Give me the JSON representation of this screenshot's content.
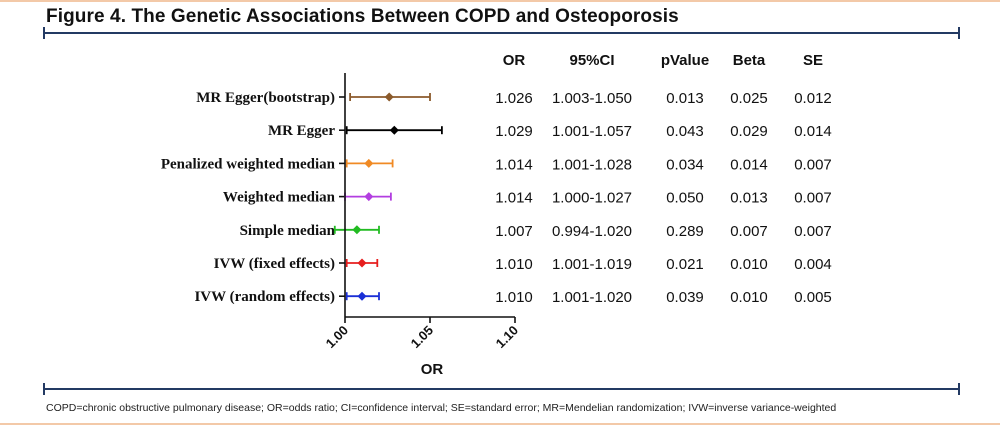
{
  "header": {
    "title": "Figure 4. The Genetic Associations Between COPD and Osteoporosis"
  },
  "footnote": "COPD=chronic obstructive pulmonary disease; OR=odds ratio; CI=confidence interval; SE=standard error;  MR=Mendelian randomization; IVW=inverse variance-weighted",
  "table": {
    "columns": [
      "OR",
      "95%CI",
      "pValue",
      "Beta",
      "SE"
    ]
  },
  "colors": {
    "rule": "#233a63",
    "frame": "#f3c9a8"
  },
  "chart_data": {
    "type": "forest",
    "xlabel": "OR",
    "xlim": [
      1.0,
      1.1
    ],
    "xticks": [
      "1.00",
      "1.05",
      "1.10"
    ],
    "xtick_values": [
      1.0,
      1.05,
      1.1
    ],
    "rows": [
      {
        "label": "MR Egger(bootstrap)",
        "or": 1.026,
        "lo": 1.003,
        "hi": 1.05,
        "or_text": "1.026",
        "ci_text": "1.003-1.050",
        "p": "0.013",
        "beta": "0.025",
        "se": "0.012",
        "color": "#8b5a2b"
      },
      {
        "label": "MR Egger",
        "or": 1.029,
        "lo": 1.001,
        "hi": 1.057,
        "or_text": "1.029",
        "ci_text": "1.001-1.057",
        "p": "0.043",
        "beta": "0.029",
        "se": "0.014",
        "color": "#000000"
      },
      {
        "label": "Penalized weighted median",
        "or": 1.014,
        "lo": 1.001,
        "hi": 1.028,
        "or_text": "1.014",
        "ci_text": "1.001-1.028",
        "p": "0.034",
        "beta": "0.014",
        "se": "0.007",
        "color": "#f08a24"
      },
      {
        "label": "Weighted median",
        "or": 1.014,
        "lo": 1.0,
        "hi": 1.027,
        "or_text": "1.014",
        "ci_text": "1.000-1.027",
        "p": "0.050",
        "beta": "0.013",
        "se": "0.007",
        "color": "#b23ee0"
      },
      {
        "label": "Simple median",
        "or": 1.007,
        "lo": 0.994,
        "hi": 1.02,
        "or_text": "1.007",
        "ci_text": "0.994-1.020",
        "p": "0.289",
        "beta": "0.007",
        "se": "0.007",
        "color": "#22bb22"
      },
      {
        "label": "IVW (fixed effects)",
        "or": 1.01,
        "lo": 1.001,
        "hi": 1.019,
        "or_text": "1.010",
        "ci_text": "1.001-1.019",
        "p": "0.021",
        "beta": "0.010",
        "se": "0.004",
        "color": "#e61e1e"
      },
      {
        "label": "IVW (random effects)",
        "or": 1.01,
        "lo": 1.001,
        "hi": 1.02,
        "or_text": "1.010",
        "ci_text": "1.001-1.020",
        "p": "0.039",
        "beta": "0.010",
        "se": "0.005",
        "color": "#1a2fd6"
      }
    ]
  }
}
